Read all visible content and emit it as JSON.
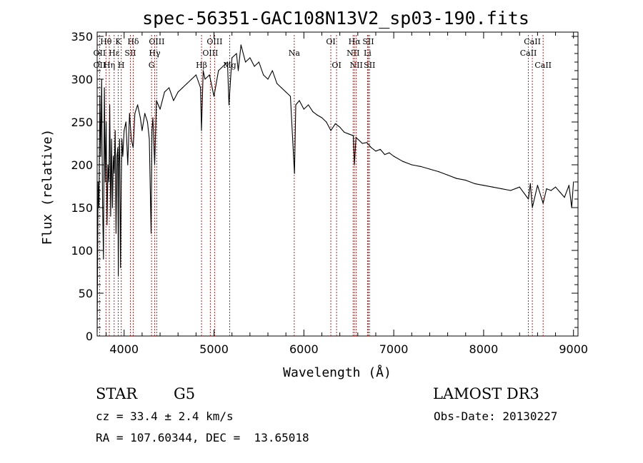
{
  "chart_data": {
    "type": "line",
    "title": "spec-56351-GAC108N13V2_sp03-190.fits",
    "xlabel": "Wavelength (Å)",
    "ylabel": "Flux (relative)",
    "xlim": [
      3700,
      9050
    ],
    "ylim": [
      0,
      355
    ],
    "xticks": [
      4000,
      5000,
      6000,
      7000,
      8000,
      9000
    ],
    "yticks": [
      0,
      50,
      100,
      150,
      200,
      250,
      300,
      350
    ],
    "grid": false,
    "series": [
      {
        "name": "flux",
        "x": [
          3700,
          3710,
          3720,
          3730,
          3740,
          3750,
          3760,
          3770,
          3780,
          3790,
          3800,
          3810,
          3820,
          3830,
          3840,
          3850,
          3860,
          3870,
          3880,
          3890,
          3900,
          3910,
          3920,
          3930,
          3935,
          3940,
          3950,
          3960,
          3968,
          3975,
          3985,
          4000,
          4020,
          4040,
          4060,
          4080,
          4101,
          4120,
          4150,
          4180,
          4200,
          4230,
          4260,
          4280,
          4300,
          4310,
          4320,
          4340,
          4360,
          4380,
          4400,
          4450,
          4500,
          4550,
          4600,
          4650,
          4700,
          4750,
          4800,
          4850,
          4861,
          4880,
          4900,
          4950,
          5000,
          5050,
          5100,
          5150,
          5167,
          5184,
          5200,
          5250,
          5270,
          5300,
          5350,
          5400,
          5450,
          5500,
          5550,
          5600,
          5650,
          5700,
          5750,
          5800,
          5850,
          5890,
          5896,
          5910,
          5950,
          6000,
          6050,
          6100,
          6150,
          6200,
          6250,
          6300,
          6350,
          6400,
          6450,
          6500,
          6550,
          6563,
          6580,
          6600,
          6650,
          6700,
          6750,
          6800,
          6850,
          6900,
          6950,
          7000,
          7100,
          7200,
          7300,
          7400,
          7500,
          7600,
          7700,
          7800,
          7900,
          8000,
          8100,
          8200,
          8300,
          8400,
          8498,
          8520,
          8542,
          8600,
          8662,
          8700,
          8750,
          8800,
          8850,
          8900,
          8950,
          8980,
          9000
        ],
        "y": [
          5,
          180,
          150,
          280,
          210,
          300,
          160,
          90,
          290,
          180,
          250,
          130,
          200,
          180,
          270,
          140,
          230,
          150,
          210,
          190,
          240,
          120,
          210,
          220,
          70,
          200,
          230,
          80,
          180,
          230,
          210,
          240,
          250,
          200,
          260,
          230,
          220,
          260,
          270,
          255,
          240,
          260,
          250,
          230,
          120,
          240,
          255,
          200,
          275,
          270,
          265,
          285,
          290,
          275,
          285,
          290,
          295,
          300,
          305,
          290,
          240,
          310,
          300,
          305,
          280,
          310,
          315,
          320,
          270,
          300,
          325,
          330,
          310,
          340,
          320,
          325,
          315,
          320,
          305,
          300,
          310,
          295,
          290,
          285,
          280,
          200,
          190,
          270,
          275,
          265,
          270,
          262,
          258,
          255,
          250,
          240,
          248,
          244,
          238,
          236,
          234,
          200,
          232,
          230,
          225,
          226,
          220,
          216,
          218,
          212,
          214,
          210,
          204,
          200,
          198,
          195,
          192,
          188,
          184,
          182,
          178,
          176,
          174,
          172,
          170,
          174,
          160,
          178,
          150,
          176,
          155,
          172,
          170,
          174,
          168,
          162,
          176,
          150,
          180
        ]
      }
    ],
    "spectral_lines": [
      {
        "label": "Hθ",
        "x": 3798,
        "row": 1
      },
      {
        "label": "K",
        "x": 3934,
        "row": 1
      },
      {
        "label": "Hδ",
        "x": 4101,
        "row": 1
      },
      {
        "label": "OIII",
        "x": 4363,
        "row": 1
      },
      {
        "label": "OIII",
        "x": 5007,
        "row": 1
      },
      {
        "label": "OI",
        "x": 6300,
        "row": 1
      },
      {
        "label": "Hα",
        "x": 6563,
        "row": 1
      },
      {
        "label": "SII",
        "x": 6717,
        "row": 1
      },
      {
        "label": "CaII",
        "x": 8542,
        "row": 1
      },
      {
        "label": "OII",
        "x": 3727,
        "row": 2
      },
      {
        "label": "Hε",
        "x": 3889,
        "row": 2
      },
      {
        "label": "SII",
        "x": 4070,
        "row": 2
      },
      {
        "label": "Hγ",
        "x": 4340,
        "row": 2
      },
      {
        "label": "OIII",
        "x": 4959,
        "row": 2
      },
      {
        "label": "Na",
        "x": 5893,
        "row": 2
      },
      {
        "label": "NII",
        "x": 6548,
        "row": 2
      },
      {
        "label": "Li",
        "x": 6708,
        "row": 2
      },
      {
        "label": "CaII",
        "x": 8498,
        "row": 2
      },
      {
        "label": "OII",
        "x": 3727,
        "row": 3
      },
      {
        "label": "Hη",
        "x": 3835,
        "row": 3
      },
      {
        "label": "H",
        "x": 3968,
        "row": 3
      },
      {
        "label": "G",
        "x": 4305,
        "row": 3
      },
      {
        "label": "Hβ",
        "x": 4861,
        "row": 3
      },
      {
        "label": "Mg",
        "x": 5175,
        "row": 3
      },
      {
        "label": "OI",
        "x": 6364,
        "row": 3
      },
      {
        "label": "NII",
        "x": 6583,
        "row": 3
      },
      {
        "label": "SII",
        "x": 6731,
        "row": 3
      },
      {
        "label": "CaII",
        "x": 8662,
        "row": 3
      }
    ],
    "marker_lines": [
      3727,
      3798,
      3835,
      3889,
      3934,
      3968,
      4070,
      4101,
      4305,
      4340,
      4363,
      4861,
      4959,
      5007,
      5175,
      5893,
      6300,
      6364,
      6548,
      6563,
      6583,
      6708,
      6717,
      6731,
      8498,
      8542,
      8662
    ]
  },
  "info": {
    "object_class": "STAR",
    "subclass": "G5",
    "survey": "LAMOST DR3",
    "cz": "cz = 33.4 ± 2.4 km/s",
    "obs_date": "Obs-Date: 20130227",
    "coords": "RA = 107.60344, DEC =  13.65018"
  }
}
